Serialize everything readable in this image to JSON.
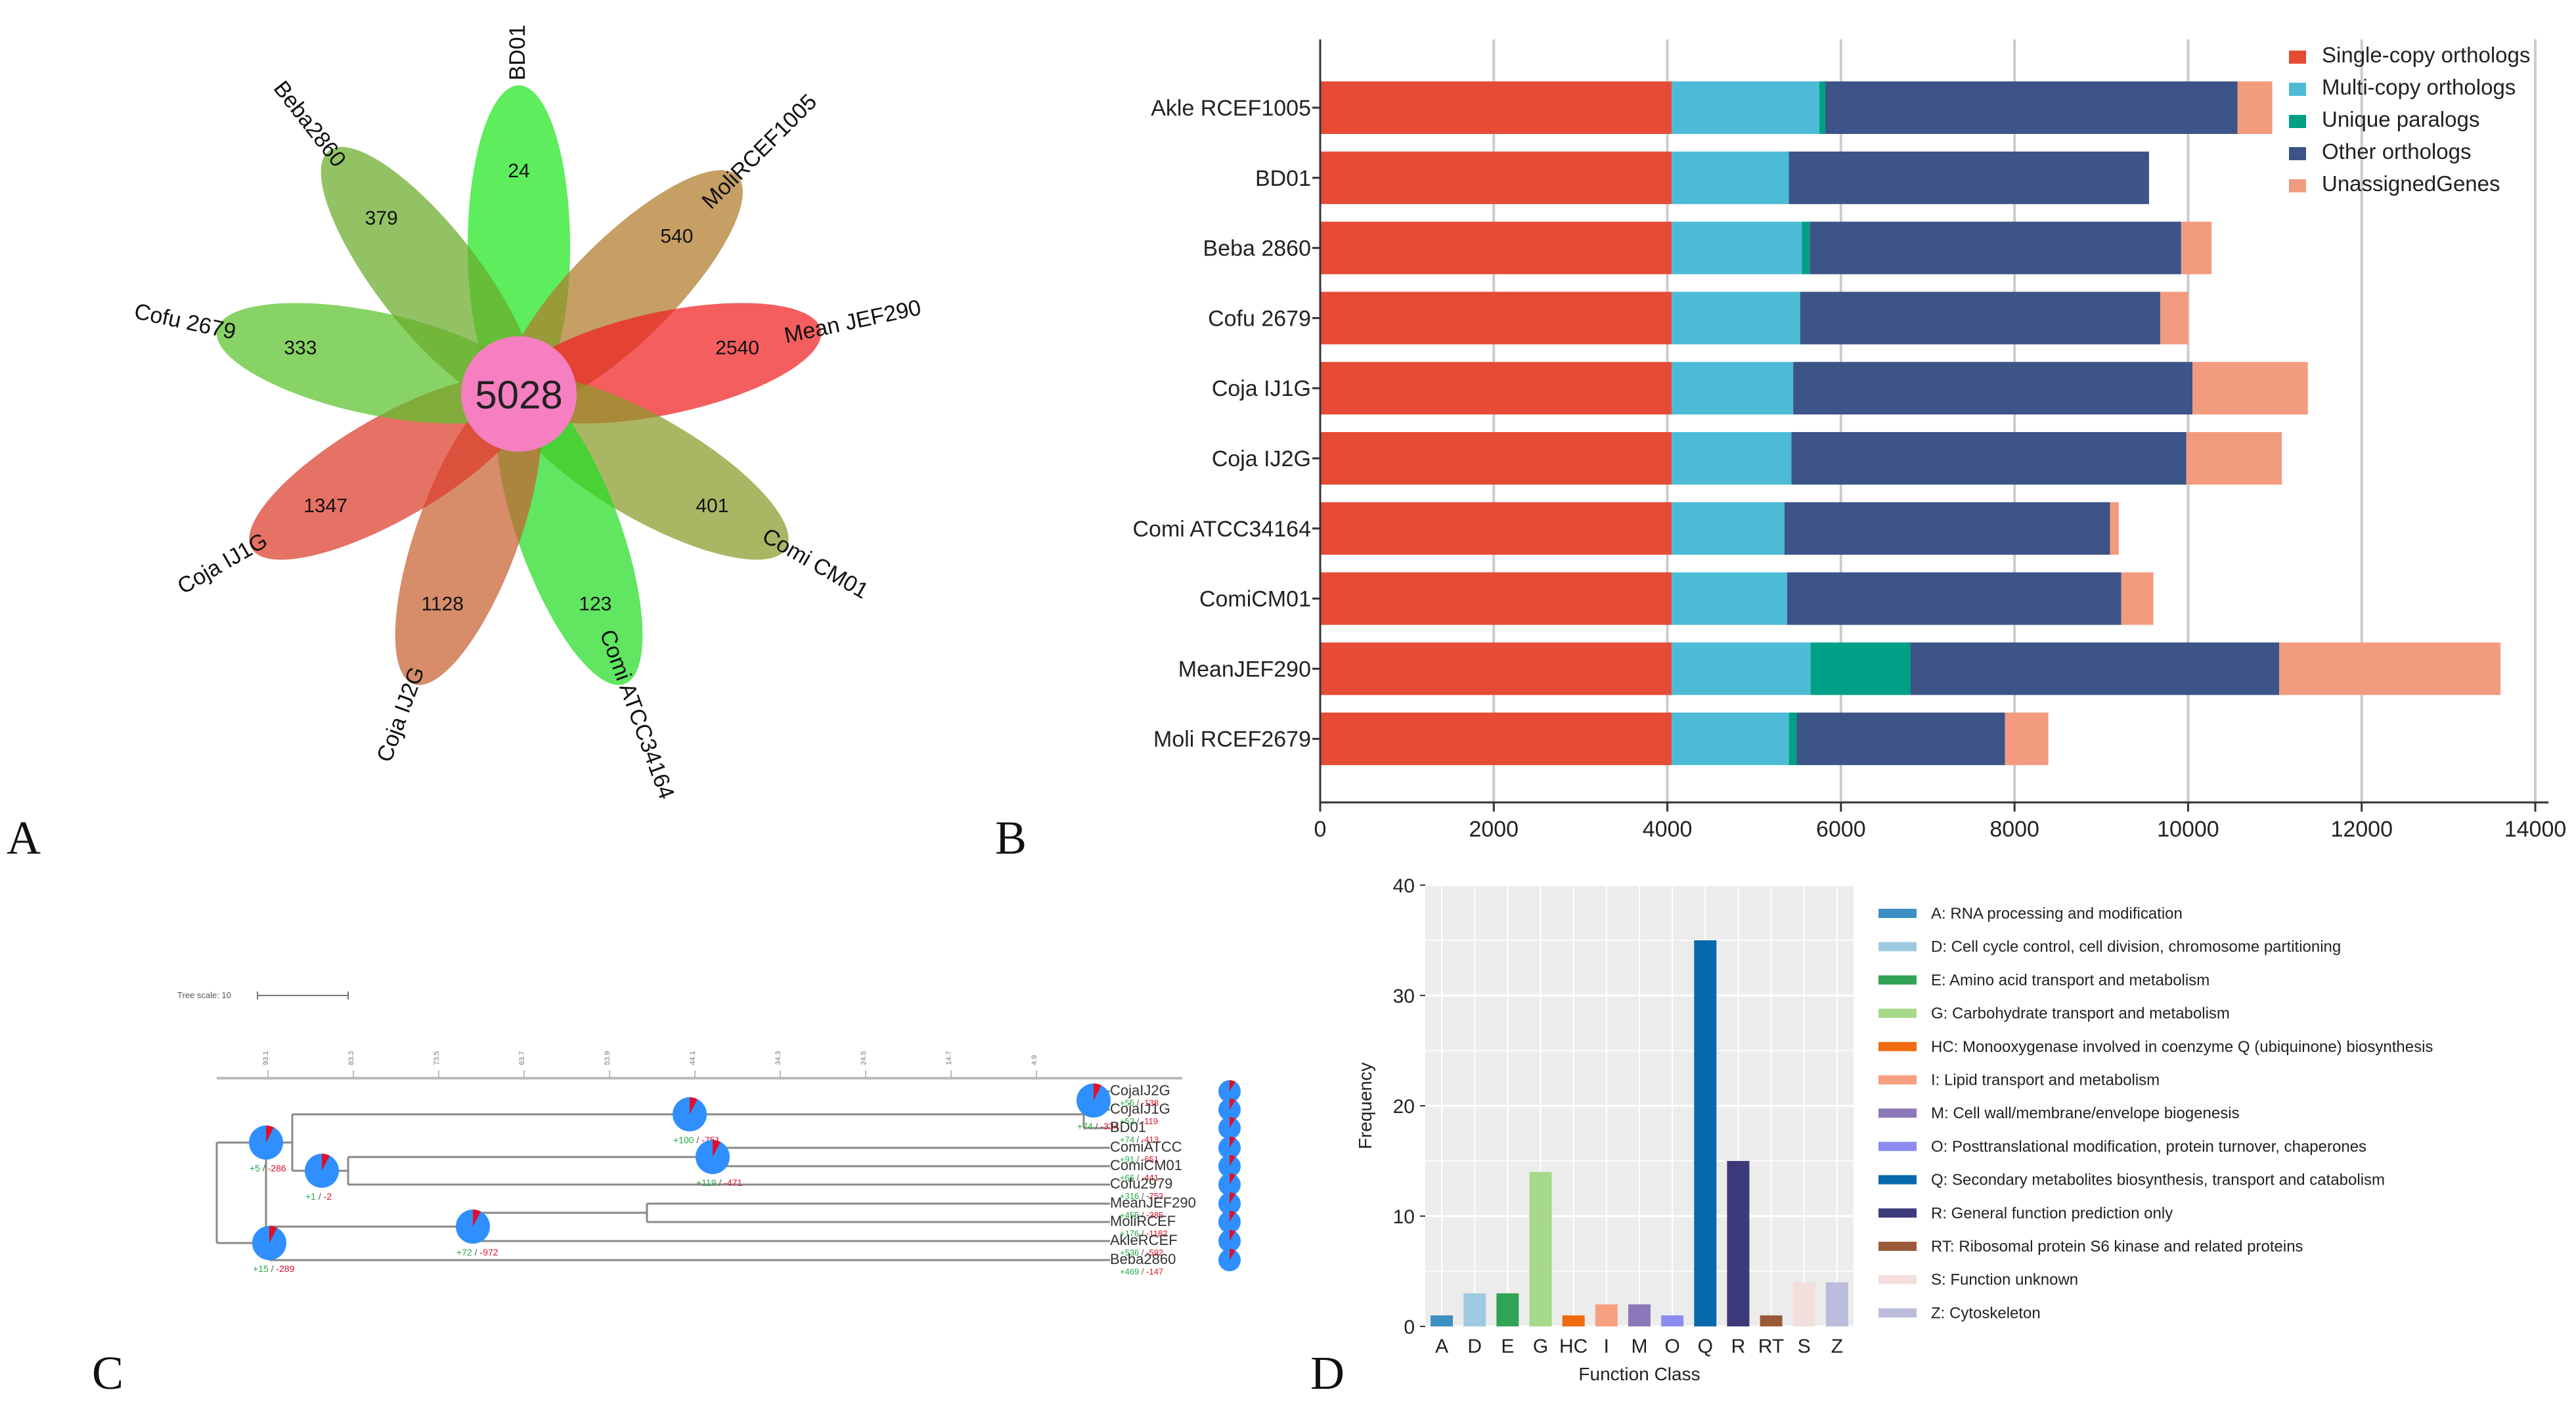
{
  "panel_labels": {
    "a": "A",
    "b": "B",
    "c": "C",
    "d": "D"
  },
  "flower": {
    "center_value": "5028",
    "petals": [
      {
        "name": "BD01",
        "count": "24",
        "color": "#1ee61e",
        "angle": 0
      },
      {
        "name": "MoliRCEF1005",
        "count": "540",
        "color": "#b07a2a",
        "angle": 45
      },
      {
        "name": "Mean JEF290",
        "count": "2540",
        "color": "#f02020",
        "angle": 78
      },
      {
        "name": "Comi CM01",
        "count": "401",
        "color": "#8a9a2a",
        "angle": 120
      },
      {
        "name": "Comi ATCC34164",
        "count": "123",
        "color": "#22dd22",
        "angle": 160
      },
      {
        "name": "Coja IJ2G",
        "count": "1128",
        "color": "#c86030",
        "angle": 200
      },
      {
        "name": "Coja IJ1G",
        "count": "1347",
        "color": "#dd3a2a",
        "angle": 240
      },
      {
        "name": "Cofu 2679",
        "count": "333",
        "color": "#5ac22a",
        "angle": 282
      },
      {
        "name": "Beba2860",
        "count": "379",
        "color": "#6aaa2a",
        "angle": 322
      }
    ]
  },
  "chart_data": [
    {
      "type": "bar",
      "orientation": "horizontal",
      "stacked": true,
      "categories": [
        "Akle RCEF1005",
        "BD01",
        "Beba 2860",
        "Cofu 2679",
        "Coja IJ1G",
        "Coja IJ2G",
        "Comi ATCC34164",
        "ComiCM01",
        "MeanJEF290",
        "Moli RCEF2679"
      ],
      "series": [
        {
          "name": "Single-copy orthologs",
          "color": "#e64b35",
          "values": [
            4050,
            4050,
            4050,
            4050,
            4050,
            4050,
            4050,
            4050,
            4050,
            4050
          ]
        },
        {
          "name": "Multi-copy orthologs",
          "color": "#4dbbd5",
          "values": [
            1700,
            1350,
            1500,
            1480,
            1400,
            1380,
            1300,
            1330,
            1600,
            1350
          ]
        },
        {
          "name": "Unique paralogs",
          "color": "#00a087",
          "values": [
            70,
            0,
            90,
            0,
            0,
            0,
            0,
            0,
            1150,
            90
          ]
        },
        {
          "name": "Other orthologs",
          "color": "#3c5488",
          "values": [
            4750,
            4150,
            4280,
            4150,
            4600,
            4550,
            3750,
            3850,
            4250,
            2400
          ]
        },
        {
          "name": "UnassignedGenes",
          "color": "#f39b7f",
          "values": [
            400,
            0,
            350,
            320,
            1330,
            1100,
            100,
            370,
            2550,
            500
          ]
        }
      ],
      "xlim": [
        0,
        14000
      ],
      "xticks": [
        0,
        2000,
        4000,
        6000,
        8000,
        10000,
        12000,
        14000
      ],
      "grid": true,
      "legend_position": "top-right"
    },
    {
      "type": "bar",
      "categories": [
        "A",
        "D",
        "E",
        "G",
        "HC",
        "I",
        "M",
        "O",
        "Q",
        "R",
        "RT",
        "S",
        "Z"
      ],
      "values": [
        1,
        3,
        3,
        14,
        1,
        2,
        2,
        1,
        35,
        15,
        1,
        4,
        4
      ],
      "colors": [
        "#3d8fc4",
        "#9ecae1",
        "#31a354",
        "#a6d98a",
        "#f06a0f",
        "#f7a080",
        "#8b78b8",
        "#8c8cf0",
        "#0868ac",
        "#3c3a7a",
        "#9a5a3a",
        "#f3dede",
        "#bcbcdc"
      ],
      "legend": [
        "A: RNA processing and modification",
        "D: Cell cycle control, cell division, chromosome partitioning",
        "E: Amino acid transport and metabolism",
        "G: Carbohydrate transport and metabolism",
        "HC: Monooxygenase involved in coenzyme Q (ubiquinone) biosynthesis",
        "I: Lipid transport and metabolism",
        "M: Cell wall/membrane/envelope biogenesis",
        "O: Posttranslational modification, protein turnover, chaperones",
        "Q: Secondary metabolites biosynthesis, transport and catabolism",
        "R: General function prediction only",
        "RT: Ribosomal protein S6 kinase and related proteins",
        "S: Function unknown",
        "Z: Cytoskeleton"
      ],
      "xlabel": "Function Class",
      "ylabel": "Frequency",
      "ylim": [
        0,
        40
      ],
      "yticks": [
        0,
        10,
        20,
        30,
        40
      ],
      "grid": true
    }
  ],
  "tree": {
    "scale_label": "Tree scale: 10",
    "time_ticks": [
      "93.1",
      "83.3",
      "73.5",
      "63.7",
      "53.9",
      "44.1",
      "34.3",
      "24.5",
      "14.7",
      "4.9"
    ],
    "leaves": [
      {
        "name": "CojaIJ2G",
        "gain": "+55",
        "loss": "-138"
      },
      {
        "name": "CojaIJ1G",
        "gain": "+52",
        "loss": "-119"
      },
      {
        "name": "BD01",
        "gain": "+74",
        "loss": "-413"
      },
      {
        "name": "ComiATCC",
        "gain": "+91",
        "loss": "-651"
      },
      {
        "name": "ComiCM01",
        "gain": "+66",
        "loss": "-441"
      },
      {
        "name": "Cofu2979",
        "gain": "+316",
        "loss": "-753"
      },
      {
        "name": "MeanJEF290",
        "gain": "+455",
        "loss": "-385"
      },
      {
        "name": "MoliRCEF",
        "gain": "+176",
        "loss": "-1182"
      },
      {
        "name": "AkleRCEF",
        "gain": "+536",
        "loss": "-592"
      },
      {
        "name": "Beba2860",
        "gain": "+469",
        "loss": "-147"
      }
    ],
    "node_labels": [
      {
        "gain": "+74",
        "loss": "-334"
      },
      {
        "gain": "+100",
        "loss": "-751"
      },
      {
        "gain": "+119",
        "loss": "-471"
      },
      {
        "gain": "+5",
        "loss": "-286"
      },
      {
        "gain": "+1",
        "loss": "-2"
      },
      {
        "gain": "+72",
        "loss": "-972"
      },
      {
        "gain": "+15",
        "loss": "-289"
      }
    ]
  }
}
